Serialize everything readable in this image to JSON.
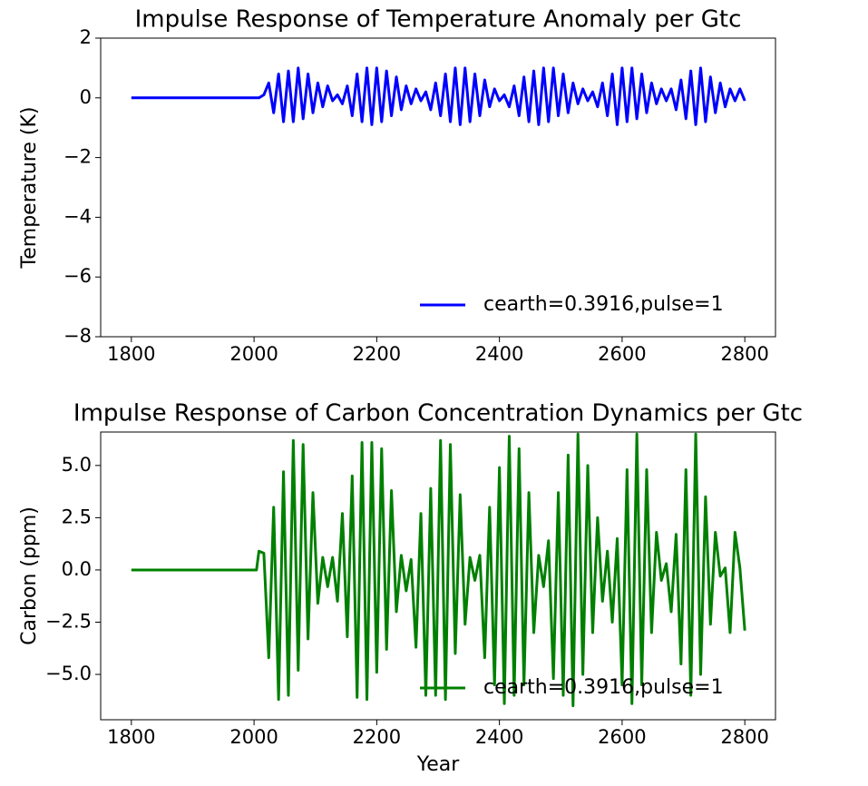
{
  "chart_data": [
    {
      "type": "line",
      "title": "Impulse Response of Temperature Anomaly per Gtc",
      "ylabel": "Temperature (K)",
      "x": [
        1800,
        2008,
        2016,
        2024,
        2032,
        2040,
        2048,
        2056,
        2064,
        2072,
        2080,
        2088,
        2096,
        2104,
        2112,
        2120,
        2128,
        2136,
        2144,
        2152,
        2160,
        2168,
        2176,
        2184,
        2192,
        2200,
        2208,
        2216,
        2224,
        2232,
        2240,
        2248,
        2256,
        2264,
        2272,
        2280,
        2288,
        2296,
        2304,
        2312,
        2320,
        2328,
        2336,
        2344,
        2352,
        2360,
        2368,
        2376,
        2384,
        2392,
        2400,
        2408,
        2416,
        2424,
        2432,
        2440,
        2448,
        2456,
        2464,
        2472,
        2480,
        2488,
        2496,
        2504,
        2512,
        2520,
        2528,
        2536,
        2544,
        2552,
        2560,
        2568,
        2576,
        2584,
        2592,
        2600,
        2608,
        2616,
        2624,
        2632,
        2640,
        2648,
        2656,
        2664,
        2672,
        2680,
        2688,
        2696,
        2704,
        2712,
        2720,
        2728,
        2736,
        2744,
        2752,
        2760,
        2768,
        2776,
        2784,
        2792,
        2800
      ],
      "series": [
        {
          "name": "cearth=0.3916,pulse=1",
          "color": "#0000ff",
          "values": [
            0,
            0,
            0.1,
            0.5,
            -0.5,
            0.8,
            -0.8,
            0.9,
            -0.8,
            1.0,
            -0.7,
            0.8,
            -0.5,
            0.5,
            -0.3,
            0.4,
            -0.1,
            0.1,
            -0.2,
            0.4,
            -0.6,
            0.8,
            -0.8,
            1.0,
            -0.9,
            1.0,
            -0.8,
            0.9,
            -0.6,
            0.7,
            -0.4,
            0.4,
            -0.2,
            0.3,
            -0.1,
            0.2,
            -0.4,
            0.5,
            -0.6,
            0.8,
            -0.8,
            1.0,
            -0.9,
            1.0,
            -0.8,
            0.8,
            -0.6,
            0.6,
            -0.3,
            0.3,
            -0.1,
            0.1,
            -0.3,
            0.4,
            -0.6,
            0.7,
            -0.8,
            0.9,
            -0.9,
            1.0,
            -0.8,
            1.0,
            -0.6,
            0.8,
            -0.5,
            0.5,
            -0.2,
            0.3,
            -0.1,
            0.2,
            -0.3,
            0.5,
            -0.6,
            0.8,
            -0.9,
            1.0,
            -0.8,
            1.0,
            -0.7,
            0.8,
            -0.5,
            0.5,
            -0.2,
            0.3,
            -0.1,
            0.3,
            -0.4,
            0.6,
            -0.7,
            0.9,
            -0.9,
            1.0,
            -0.8,
            0.7,
            -0.5,
            0.5,
            -0.3,
            0.3,
            -0.1,
            0.3,
            -0.1
          ]
        }
      ],
      "xlim": [
        1750,
        2850
      ],
      "xticks": [
        1800,
        2000,
        2200,
        2400,
        2600,
        2800
      ],
      "ylim": [
        -8,
        2
      ],
      "yticks": [
        {
          "value": -8,
          "label": "−8"
        },
        {
          "value": -6,
          "label": "−6"
        },
        {
          "value": -4,
          "label": "−4"
        },
        {
          "value": -2,
          "label": "−2"
        },
        0,
        2
      ],
      "legend": "lower right"
    },
    {
      "type": "line",
      "title": "Impulse Response of Carbon Concentration Dynamics per Gtc",
      "ylabel": "Carbon (ppm)",
      "xlabel": "Year",
      "x": [
        1800,
        2004,
        2008,
        2016,
        2024,
        2032,
        2040,
        2048,
        2056,
        2064,
        2072,
        2080,
        2088,
        2096,
        2104,
        2112,
        2120,
        2128,
        2136,
        2144,
        2152,
        2160,
        2168,
        2176,
        2184,
        2192,
        2200,
        2208,
        2216,
        2224,
        2232,
        2240,
        2248,
        2256,
        2264,
        2272,
        2280,
        2288,
        2296,
        2304,
        2312,
        2320,
        2328,
        2336,
        2344,
        2352,
        2360,
        2368,
        2376,
        2384,
        2392,
        2400,
        2408,
        2416,
        2424,
        2432,
        2440,
        2448,
        2456,
        2464,
        2472,
        2480,
        2488,
        2496,
        2504,
        2512,
        2520,
        2528,
        2536,
        2544,
        2552,
        2560,
        2568,
        2576,
        2584,
        2592,
        2600,
        2608,
        2616,
        2624,
        2632,
        2640,
        2648,
        2656,
        2664,
        2672,
        2680,
        2688,
        2696,
        2704,
        2712,
        2720,
        2728,
        2736,
        2744,
        2752,
        2760,
        2768,
        2776,
        2784,
        2792,
        2800
      ],
      "series": [
        {
          "name": "cearth=0.3916,pulse=1",
          "color": "#008000",
          "values": [
            0,
            0,
            0.9,
            0.8,
            -4.2,
            3.0,
            -6.2,
            4.7,
            -6.0,
            6.2,
            -4.8,
            6.0,
            -3.3,
            3.7,
            -1.6,
            0.6,
            -0.8,
            0.6,
            -1.5,
            2.7,
            -3.2,
            4.5,
            -6.1,
            6.1,
            -6.2,
            6.1,
            -4.9,
            5.8,
            -3.8,
            3.8,
            -2.0,
            0.7,
            -1.0,
            0.5,
            -3.7,
            2.7,
            -6.0,
            3.9,
            -6.0,
            6.2,
            -6.2,
            6.0,
            -4.0,
            3.6,
            -2.6,
            0.6,
            -0.5,
            0.7,
            -4.2,
            3.0,
            -5.5,
            4.9,
            -6.4,
            6.4,
            -6.0,
            5.8,
            -5.5,
            3.7,
            -3.0,
            0.7,
            -0.8,
            1.4,
            -5.2,
            3.7,
            -6.0,
            5.5,
            -6.5,
            6.5,
            -5.0,
            5.0,
            -3.0,
            2.5,
            -1.5,
            0.9,
            -2.5,
            1.5,
            -5.5,
            4.8,
            -6.4,
            6.5,
            -5.5,
            4.8,
            -3.0,
            1.8,
            -0.5,
            0.3,
            -2.0,
            1.7,
            -4.5,
            4.8,
            -6.0,
            6.5,
            -5.0,
            3.5,
            -2.6,
            1.8,
            -0.3,
            0.1,
            -3.0,
            1.8,
            0.1,
            -2.9
          ]
        }
      ],
      "xlim": [
        1750,
        2850
      ],
      "xticks": [
        1800,
        2000,
        2200,
        2400,
        2600,
        2800
      ],
      "ylim": [
        -7.17,
        6.6
      ],
      "yticks": [
        {
          "value": -5,
          "label": "−5.0"
        },
        {
          "value": -2.5,
          "label": "−2.5"
        },
        {
          "value": 0,
          "label": "0.0"
        },
        {
          "value": 2.5,
          "label": "2.5"
        },
        {
          "value": 5,
          "label": "5.0"
        }
      ],
      "legend": "lower right"
    }
  ]
}
